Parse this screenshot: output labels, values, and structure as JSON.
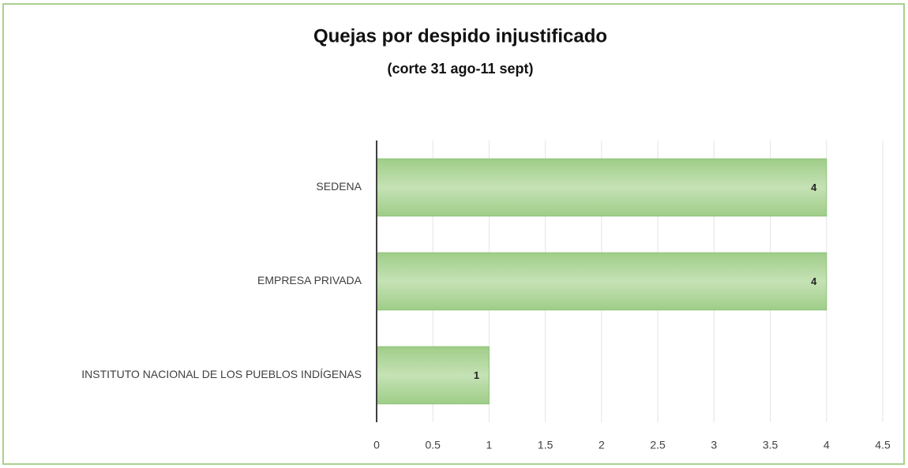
{
  "chart_data": {
    "type": "barh",
    "title": "Quejas por despido injustificado",
    "subtitle": "(corte 31 ago-11 sept)",
    "categories": [
      "SEDENA",
      "EMPRESA PRIVADA",
      "INSTITUTO NACIONAL DE LOS PUEBLOS INDÍGENAS"
    ],
    "values": [
      4,
      4,
      1
    ],
    "color": "#b4d8a0",
    "xlim": [
      0,
      4.5
    ],
    "xticks": [
      0,
      0.5,
      1,
      1.5,
      2,
      2.5,
      3,
      3.5,
      4,
      4.5
    ],
    "grid": true
  }
}
